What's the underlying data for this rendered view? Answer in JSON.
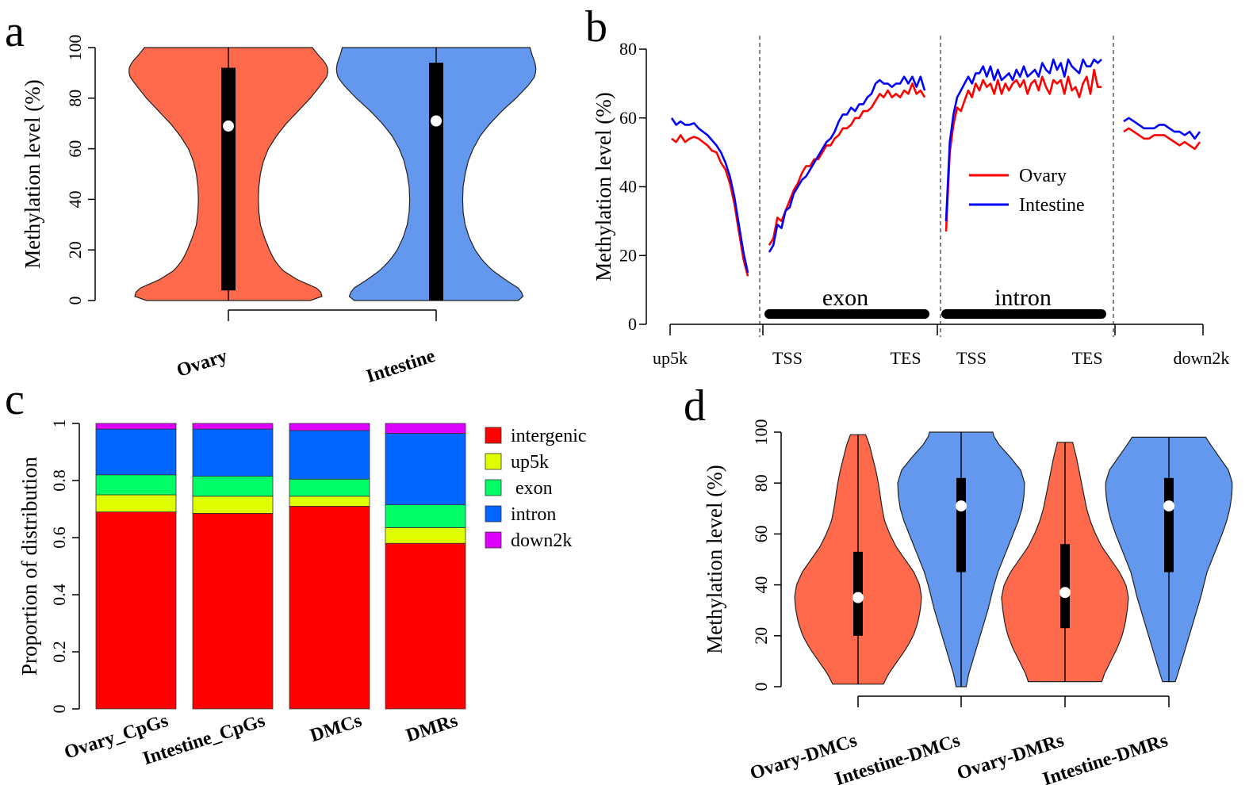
{
  "panels": {
    "a": "a",
    "b": "b",
    "c": "c",
    "d": "d"
  },
  "chart_data": [
    {
      "type": "violin",
      "panel": "a",
      "ylabel": "Methylation level (%)",
      "ylim": [
        0,
        100
      ],
      "yticks": [
        0,
        20,
        40,
        60,
        80,
        100
      ],
      "categories": [
        "Ovary",
        "Intestine"
      ],
      "colors": [
        "#FF6A4D",
        "#6497EE"
      ],
      "violins": [
        {
          "name": "Ovary",
          "median": 69,
          "q1": 4,
          "q3": 92,
          "min": 0,
          "max": 100,
          "density": [
            [
              0,
              0.82
            ],
            [
              2,
              0.96
            ],
            [
              5,
              0.88
            ],
            [
              8,
              0.7
            ],
            [
              12,
              0.54
            ],
            [
              16,
              0.46
            ],
            [
              20,
              0.41
            ],
            [
              25,
              0.36
            ],
            [
              30,
              0.32
            ],
            [
              35,
              0.305
            ],
            [
              40,
              0.3
            ],
            [
              45,
              0.305
            ],
            [
              50,
              0.32
            ],
            [
              55,
              0.35
            ],
            [
              60,
              0.4
            ],
            [
              65,
              0.48
            ],
            [
              70,
              0.58
            ],
            [
              75,
              0.7
            ],
            [
              80,
              0.82
            ],
            [
              85,
              0.92
            ],
            [
              88,
              0.98
            ],
            [
              91,
              1.0
            ],
            [
              94,
              0.97
            ],
            [
              97,
              0.9
            ],
            [
              100,
              0.84
            ]
          ]
        },
        {
          "name": "Intestine",
          "median": 71,
          "q1": 0,
          "q3": 94,
          "min": 0,
          "max": 100,
          "density": [
            [
              0,
              0.82
            ],
            [
              2,
              0.88
            ],
            [
              5,
              0.82
            ],
            [
              8,
              0.7
            ],
            [
              12,
              0.56
            ],
            [
              16,
              0.46
            ],
            [
              20,
              0.39
            ],
            [
              25,
              0.33
            ],
            [
              30,
              0.29
            ],
            [
              35,
              0.27
            ],
            [
              40,
              0.265
            ],
            [
              45,
              0.27
            ],
            [
              50,
              0.29
            ],
            [
              55,
              0.32
            ],
            [
              60,
              0.37
            ],
            [
              65,
              0.44
            ],
            [
              70,
              0.54
            ],
            [
              75,
              0.66
            ],
            [
              80,
              0.8
            ],
            [
              85,
              0.92
            ],
            [
              88,
              0.98
            ],
            [
              91,
              1.0
            ],
            [
              94,
              0.99
            ],
            [
              97,
              0.96
            ],
            [
              100,
              0.94
            ]
          ]
        }
      ]
    },
    {
      "type": "line",
      "panel": "b",
      "ylabel": "Methylation level (%)",
      "ylim": [
        0,
        80
      ],
      "yticks": [
        0,
        20,
        40,
        60,
        80
      ],
      "xlabels": [
        "up5k",
        "TSS",
        "TES",
        "TSS",
        "TES",
        "down2k"
      ],
      "segments": [
        "exon",
        "intron"
      ],
      "legend": [
        "Ovary",
        "Intestine"
      ],
      "colors": [
        "#FF0000",
        "#0000FF"
      ],
      "regions": [
        {
          "name": "up5k",
          "Ovary": [
            54,
            53,
            55,
            53,
            54,
            54.5,
            54,
            53,
            52,
            50.5,
            50,
            47,
            45,
            41,
            35,
            27,
            19,
            14
          ],
          "Intestine": [
            60,
            58,
            59,
            58,
            58,
            58.5,
            57,
            56,
            55,
            53.5,
            52,
            50,
            47,
            43,
            37,
            29,
            21,
            15
          ]
        },
        {
          "name": "exon",
          "Ovary": [
            23,
            25,
            31,
            30,
            33,
            36,
            39,
            41,
            44,
            46,
            46,
            48,
            48,
            50,
            52,
            52,
            54,
            55,
            57,
            57,
            58,
            60,
            60,
            62,
            62,
            63,
            65,
            67,
            66,
            68,
            66,
            67,
            66,
            68,
            67,
            70,
            67,
            68,
            66
          ],
          "Intestine": [
            21,
            23,
            29,
            28,
            33,
            34,
            38,
            40,
            42,
            43,
            45,
            47,
            49,
            51,
            53,
            54,
            56,
            59,
            61,
            61,
            63,
            62,
            64,
            64,
            66,
            67,
            70,
            71,
            70,
            70,
            69,
            70,
            70,
            72,
            70,
            72,
            69,
            72,
            68
          ]
        },
        {
          "name": "intron",
          "Ovary": [
            27,
            50,
            58,
            63,
            62,
            65,
            68,
            66,
            70,
            68,
            71,
            69,
            70,
            67,
            71,
            67,
            70,
            68,
            70,
            71,
            69,
            71,
            67,
            70,
            71,
            68,
            72,
            69,
            67,
            71,
            70,
            71,
            67,
            72,
            68,
            69,
            66,
            70,
            72,
            67,
            74,
            69,
            69
          ],
          "Intestine": [
            30,
            53,
            61,
            66,
            68,
            70,
            72,
            70,
            73,
            73,
            75,
            72,
            75,
            71,
            74,
            71,
            72,
            73,
            71,
            74,
            72,
            75,
            72,
            73,
            74,
            72,
            76,
            74,
            73,
            77,
            74,
            76,
            72,
            77,
            75,
            74,
            73,
            77,
            75,
            75,
            77,
            76,
            77
          ]
        },
        {
          "name": "down2k",
          "Ovary": [
            56,
            57,
            56,
            55,
            54,
            54,
            55,
            55,
            55,
            54,
            53,
            52,
            53,
            52,
            51,
            53
          ],
          "Intestine": [
            59,
            60,
            59,
            58,
            57,
            57,
            57,
            58,
            58,
            57,
            56,
            56,
            55,
            56,
            54,
            56
          ]
        }
      ]
    },
    {
      "type": "stacked_bar",
      "panel": "c",
      "ylabel": "Proportion of distribution",
      "ylim": [
        0,
        1
      ],
      "yticks": [
        "0",
        "0.2",
        "0.4",
        "0.6",
        "0.8",
        "1"
      ],
      "categories": [
        "Ovary_CpGs",
        "Intestine_CpGs",
        "DMCs",
        "DMRs"
      ],
      "series": [
        {
          "name": "intergenic",
          "color": "#FF0000",
          "values": [
            0.69,
            0.685,
            0.71,
            0.58
          ]
        },
        {
          "name": "up5k",
          "color": "#DFFF00",
          "values": [
            0.06,
            0.06,
            0.035,
            0.055
          ]
        },
        {
          "name": "exon",
          "color": "#00FF66",
          "values": [
            0.07,
            0.07,
            0.06,
            0.08
          ]
        },
        {
          "name": "intron",
          "color": "#0066FF",
          "values": [
            0.16,
            0.165,
            0.17,
            0.25
          ]
        },
        {
          "name": "down2k",
          "color": "#DD00FF",
          "values": [
            0.02,
            0.02,
            0.025,
            0.035
          ]
        }
      ]
    },
    {
      "type": "violin",
      "panel": "d",
      "ylabel": "Methylation level (%)",
      "ylim": [
        0,
        100
      ],
      "yticks": [
        0,
        20,
        40,
        60,
        80,
        100
      ],
      "categories": [
        "Ovary-DMCs",
        "Intestine-DMCs",
        "Ovary-DMRs",
        "Intestine-DMRs"
      ],
      "colors": [
        "#FF6A4D",
        "#6497EE",
        "#FF6A4D",
        "#6497EE"
      ],
      "violins": [
        {
          "name": "Ovary-DMCs",
          "median": 35,
          "q1": 20,
          "q3": 53,
          "min": 1,
          "max": 99,
          "density": [
            [
              1,
              0.4
            ],
            [
              5,
              0.48
            ],
            [
              10,
              0.62
            ],
            [
              15,
              0.76
            ],
            [
              20,
              0.87
            ],
            [
              25,
              0.94
            ],
            [
              30,
              0.98
            ],
            [
              35,
              1.0
            ],
            [
              40,
              0.97
            ],
            [
              45,
              0.88
            ],
            [
              50,
              0.74
            ],
            [
              55,
              0.6
            ],
            [
              60,
              0.5
            ],
            [
              65,
              0.42
            ],
            [
              70,
              0.38
            ],
            [
              75,
              0.35
            ],
            [
              80,
              0.32
            ],
            [
              85,
              0.28
            ],
            [
              90,
              0.23
            ],
            [
              95,
              0.18
            ],
            [
              99,
              0.12
            ]
          ]
        },
        {
          "name": "Intestine-DMCs",
          "median": 71,
          "q1": 45,
          "q3": 82,
          "min": 0,
          "max": 100,
          "density": [
            [
              0,
              0.08
            ],
            [
              5,
              0.12
            ],
            [
              10,
              0.18
            ],
            [
              15,
              0.24
            ],
            [
              20,
              0.3
            ],
            [
              25,
              0.36
            ],
            [
              30,
              0.42
            ],
            [
              35,
              0.47
            ],
            [
              40,
              0.52
            ],
            [
              45,
              0.58
            ],
            [
              50,
              0.66
            ],
            [
              55,
              0.74
            ],
            [
              60,
              0.82
            ],
            [
              65,
              0.9
            ],
            [
              70,
              0.96
            ],
            [
              75,
              0.99
            ],
            [
              80,
              1.0
            ],
            [
              85,
              0.94
            ],
            [
              90,
              0.78
            ],
            [
              95,
              0.6
            ],
            [
              99,
              0.5
            ]
          ]
        },
        {
          "name": "Ovary-DMRs",
          "median": 37,
          "q1": 23,
          "q3": 56,
          "min": 2,
          "max": 96,
          "density": [
            [
              2,
              0.58
            ],
            [
              5,
              0.62
            ],
            [
              10,
              0.72
            ],
            [
              15,
              0.82
            ],
            [
              20,
              0.9
            ],
            [
              25,
              0.95
            ],
            [
              30,
              0.98
            ],
            [
              35,
              1.0
            ],
            [
              40,
              0.96
            ],
            [
              45,
              0.86
            ],
            [
              50,
              0.72
            ],
            [
              55,
              0.58
            ],
            [
              60,
              0.48
            ],
            [
              65,
              0.4
            ],
            [
              70,
              0.34
            ],
            [
              75,
              0.3
            ],
            [
              80,
              0.26
            ],
            [
              85,
              0.22
            ],
            [
              90,
              0.18
            ],
            [
              96,
              0.12
            ]
          ]
        },
        {
          "name": "Intestine-DMRs",
          "median": 71,
          "q1": 45,
          "q3": 82,
          "min": 2,
          "max": 98,
          "density": [
            [
              2,
              0.1
            ],
            [
              5,
              0.14
            ],
            [
              10,
              0.2
            ],
            [
              15,
              0.26
            ],
            [
              20,
              0.32
            ],
            [
              25,
              0.38
            ],
            [
              30,
              0.44
            ],
            [
              35,
              0.5
            ],
            [
              40,
              0.55
            ],
            [
              45,
              0.6
            ],
            [
              50,
              0.68
            ],
            [
              55,
              0.76
            ],
            [
              60,
              0.84
            ],
            [
              65,
              0.91
            ],
            [
              70,
              0.96
            ],
            [
              75,
              0.99
            ],
            [
              80,
              1.0
            ],
            [
              85,
              0.94
            ],
            [
              90,
              0.8
            ],
            [
              95,
              0.66
            ],
            [
              98,
              0.58
            ]
          ]
        }
      ]
    }
  ]
}
